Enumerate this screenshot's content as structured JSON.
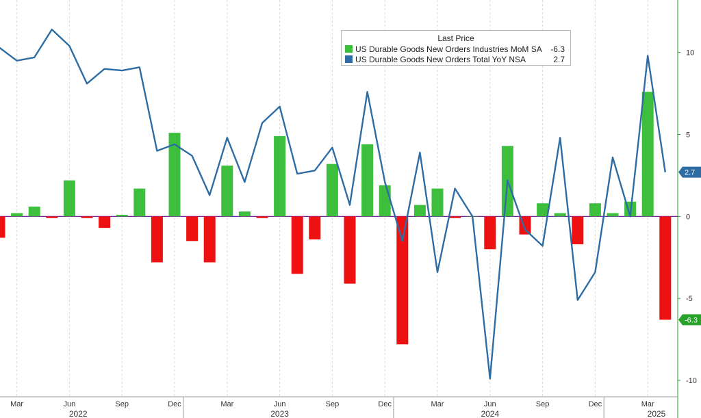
{
  "chart_data": {
    "type": "bar",
    "legend_title": "Last Price",
    "legend_position": "top-center",
    "grid": "vertical dashed at months",
    "ylim": [
      -11,
      13.2
    ],
    "y_ticks": [
      10,
      5,
      0,
      -5,
      -10
    ],
    "x_ticks": [
      {
        "i": 1,
        "label": "Mar"
      },
      {
        "i": 4,
        "label": "Jun"
      },
      {
        "i": 7,
        "label": "Sep"
      },
      {
        "i": 10,
        "label": "Dec"
      },
      {
        "i": 13,
        "label": "Mar"
      },
      {
        "i": 16,
        "label": "Jun"
      },
      {
        "i": 19,
        "label": "Sep"
      },
      {
        "i": 22,
        "label": "Dec"
      },
      {
        "i": 25,
        "label": "Mar"
      },
      {
        "i": 28,
        "label": "Jun"
      },
      {
        "i": 31,
        "label": "Sep"
      },
      {
        "i": 34,
        "label": "Dec"
      },
      {
        "i": 37,
        "label": "Mar"
      }
    ],
    "years": [
      {
        "label": "2022",
        "at": 4.5
      },
      {
        "label": "2023",
        "at": 16
      },
      {
        "label": "2024",
        "at": 28
      },
      {
        "label": "2025",
        "at": 37.5
      }
    ],
    "year_separators": [
      10.5,
      22.5,
      34.5
    ],
    "categories": [
      "Feb 2022",
      "Mar 2022",
      "Apr 2022",
      "May 2022",
      "Jun 2022",
      "Jul 2022",
      "Aug 2022",
      "Sep 2022",
      "Oct 2022",
      "Nov 2022",
      "Dec 2022",
      "Jan 2023",
      "Feb 2023",
      "Mar 2023",
      "Apr 2023",
      "May 2023",
      "Jun 2023",
      "Jul 2023",
      "Aug 2023",
      "Sep 2023",
      "Oct 2023",
      "Nov 2023",
      "Dec 2023",
      "Jan 2024",
      "Feb 2024",
      "Mar 2024",
      "Apr 2024",
      "May 2024",
      "Jun 2024",
      "Jul 2024",
      "Aug 2024",
      "Sep 2024",
      "Oct 2024",
      "Nov 2024",
      "Dec 2024",
      "Jan 2025",
      "Feb 2025",
      "Mar 2025",
      "Apr 2025"
    ],
    "series": [
      {
        "name": "US Durable Goods New Orders Industries MoM SA",
        "last_value": "-6.3",
        "kind": "bar",
        "positive_color": "#3dbf3d",
        "negative_color": "#ee1111",
        "values": [
          -1.3,
          0.2,
          0.6,
          -0.1,
          2.2,
          -0.1,
          -0.7,
          0.1,
          1.7,
          -2.8,
          5.1,
          -1.5,
          -2.8,
          3.1,
          0.3,
          -0.1,
          4.9,
          -3.5,
          -1.4,
          3.2,
          -4.1,
          4.4,
          1.9,
          -7.8,
          0.7,
          1.7,
          -0.1,
          0.0,
          -2.0,
          4.3,
          -1.1,
          0.8,
          0.2,
          -1.7,
          0.8,
          0.2,
          0.9,
          7.6,
          -6.3
        ]
      },
      {
        "name": "US Durable Goods New Orders Total YoY NSA",
        "last_value": "2.7",
        "kind": "line",
        "color": "#2e6da4",
        "values": [
          10.3,
          9.5,
          9.7,
          11.4,
          10.4,
          8.1,
          9.0,
          8.9,
          9.1,
          4.0,
          4.4,
          3.7,
          1.3,
          4.8,
          2.1,
          5.7,
          6.7,
          2.6,
          2.8,
          4.2,
          0.7,
          7.6,
          2.1,
          -1.5,
          3.9,
          -3.4,
          1.7,
          0.0,
          -9.9,
          2.2,
          -0.8,
          -1.8,
          4.8,
          -5.1,
          -3.4,
          3.6,
          0.0,
          9.8,
          2.7
        ]
      }
    ]
  }
}
